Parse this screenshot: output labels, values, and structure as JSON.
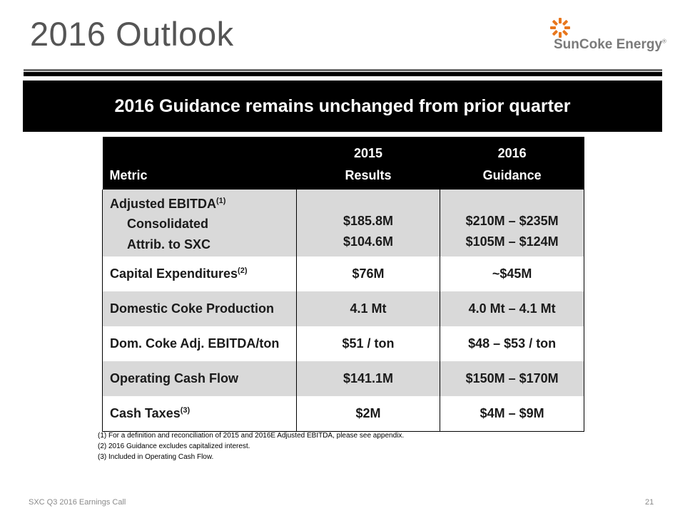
{
  "title": "2016 Outlook",
  "logo": {
    "text": "SunCoke Energy",
    "reg": "®",
    "accent": "#e8761c"
  },
  "banner": "2016 Guidance remains unchanged from prior quarter",
  "table": {
    "headers": {
      "metric": "Metric",
      "col2_line1": "2015",
      "col2_line2": "Results",
      "col3_line1": "2016",
      "col3_line2": "Guidance"
    },
    "ebitda": {
      "label": "Adjusted EBITDA",
      "sup": "(1)",
      "rows": [
        {
          "label": "Consolidated",
          "result": "$185.8M",
          "guidance": "$210M – $235M"
        },
        {
          "label": "Attrib. to SXC",
          "result": "$104.6M",
          "guidance": "$105M – $124M"
        }
      ]
    },
    "rows": [
      {
        "label": "Capital Expenditures",
        "sup": "(2)",
        "result": "$76M",
        "guidance": "~$45M"
      },
      {
        "label": "Domestic Coke Production",
        "sup": "",
        "result": "4.1 Mt",
        "guidance": "4.0 Mt – 4.1 Mt"
      },
      {
        "label": "Dom. Coke Adj. EBITDA/ton",
        "sup": "",
        "result": "$51 / ton",
        "guidance": "$48 – $53 / ton"
      },
      {
        "label": "Operating Cash Flow",
        "sup": "",
        "result": "$141.1M",
        "guidance": "$150M – $170M"
      },
      {
        "label": "Cash Taxes",
        "sup": "(3)",
        "result": "$2M",
        "guidance": "$4M – $9M"
      }
    ]
  },
  "notes": [
    "(1)  For a definition and reconciliation of 2015 and 2016E Adjusted EBITDA, please see appendix.",
    "(2)  2016 Guidance excludes capitalized interest.",
    "(3)  Included in Operating Cash Flow."
  ],
  "footer": {
    "left": "SXC Q3 2016 Earnings Call",
    "page": "21"
  }
}
